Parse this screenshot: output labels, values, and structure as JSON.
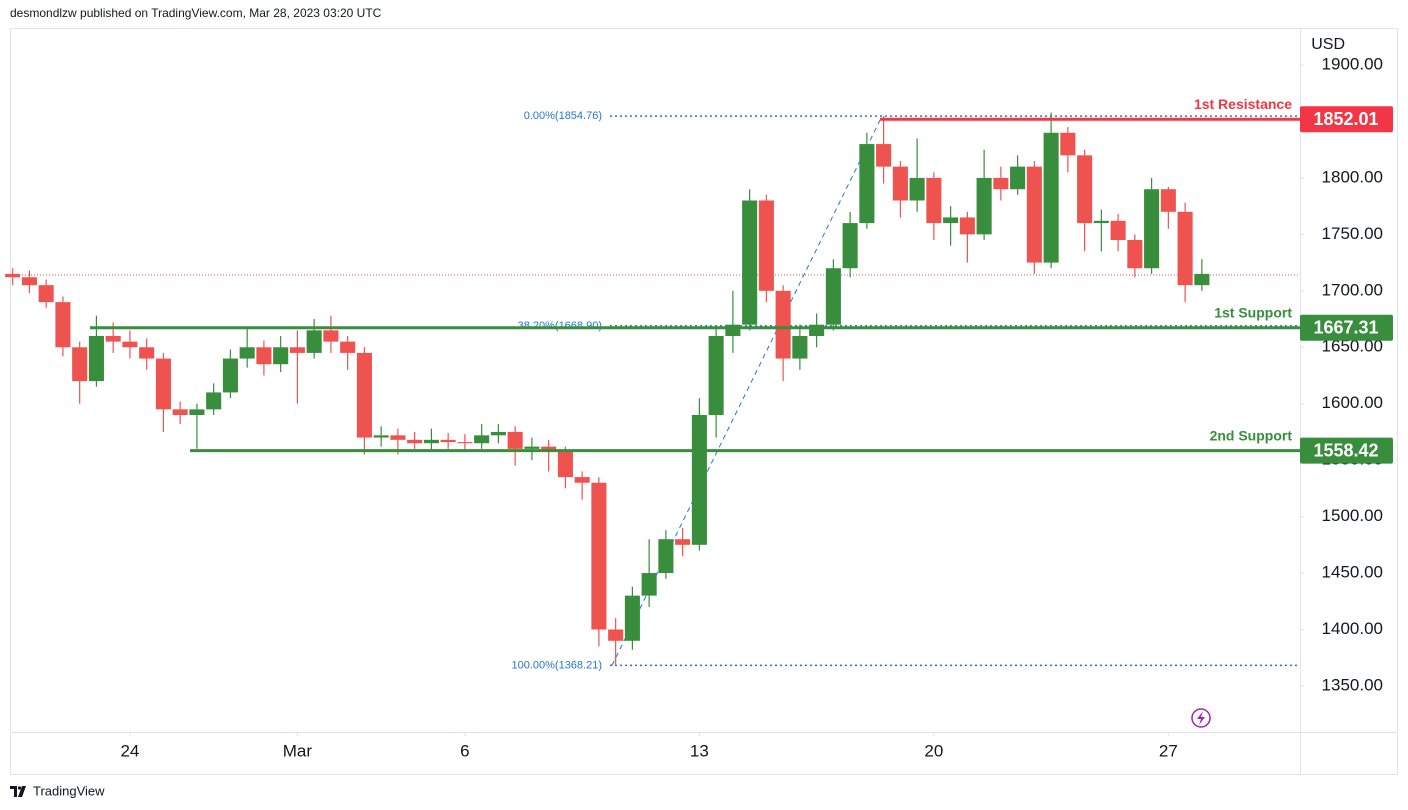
{
  "chart_data": {
    "type": "candlestick",
    "source": "desmondlzw published on TradingView.com, Mar 28, 2023 03:20 UTC",
    "brand": "TradingView",
    "y_label": "USD",
    "up_color": "#388e3c",
    "down_color": "#ef5350",
    "xlim": [
      20.42,
      58.93
    ],
    "xticks": [
      {
        "value": 24,
        "label": "24"
      },
      {
        "value": 29,
        "label": "Mar"
      },
      {
        "value": 34,
        "label": "6"
      },
      {
        "value": 41,
        "label": "13"
      },
      {
        "value": 48,
        "label": "20"
      },
      {
        "value": 55,
        "label": "27"
      }
    ],
    "ylim": [
      1309.2,
      1932.8
    ],
    "yticks": [
      {
        "value": 1350,
        "label": "1350.00"
      },
      {
        "value": 1400,
        "label": "1400.00"
      },
      {
        "value": 1450,
        "label": "1450.00"
      },
      {
        "value": 1500,
        "label": "1500.00"
      },
      {
        "value": 1550,
        "label": "1550.00"
      },
      {
        "value": 1600,
        "label": "1600.00"
      },
      {
        "value": 1650,
        "label": "1650.00"
      },
      {
        "value": 1700,
        "label": "1700.00"
      },
      {
        "value": 1750,
        "label": "1750.00"
      },
      {
        "value": 1800,
        "label": "1800.00"
      },
      {
        "value": 1850,
        "label": "1850.00"
      },
      {
        "value": 1900,
        "label": "1900.00"
      }
    ],
    "x": [
      20.5,
      21,
      21.5,
      22,
      22.5,
      23,
      23.5,
      24,
      24.5,
      25,
      25.5,
      26,
      26.5,
      27,
      27.5,
      28,
      28.5,
      29,
      29.5,
      30,
      30.5,
      31,
      31.5,
      32,
      32.5,
      33,
      33.5,
      34,
      34.5,
      35,
      35.5,
      36,
      36.5,
      37,
      37.5,
      38,
      38.5,
      39,
      39.5,
      40,
      40.5,
      41,
      41.5,
      42,
      42.5,
      43,
      43.5,
      44,
      44.5,
      45,
      45.5,
      46,
      46.5,
      47,
      47.5,
      48,
      48.5,
      49,
      49.5,
      50,
      50.5,
      51,
      51.5,
      52,
      52.5,
      53,
      53.5,
      54,
      54.5,
      55,
      55.5,
      56
    ],
    "open": [
      1715,
      1712,
      1705,
      1690,
      1650,
      1620,
      1660,
      1655,
      1650,
      1640,
      1595,
      1590,
      1595,
      1610,
      1640,
      1650,
      1635,
      1650,
      1645,
      1665,
      1655,
      1645,
      1570,
      1572,
      1568,
      1565,
      1568,
      1566,
      1565,
      1572,
      1575,
      1560,
      1562,
      1558,
      1535,
      1530,
      1400,
      1390,
      1430,
      1450,
      1480,
      1475,
      1590,
      1660,
      1670,
      1780,
      1700,
      1640,
      1660,
      1670,
      1720,
      1760,
      1830,
      1810,
      1780,
      1800,
      1760,
      1765,
      1750,
      1800,
      1790,
      1810,
      1725,
      1840,
      1820,
      1760,
      1762,
      1745,
      1720,
      1790,
      1770,
      1705
    ],
    "high": [
      1720,
      1718,
      1710,
      1695,
      1655,
      1678,
      1672,
      1665,
      1658,
      1645,
      1602,
      1600,
      1618,
      1648,
      1668,
      1656,
      1660,
      1665,
      1675,
      1678,
      1660,
      1650,
      1580,
      1578,
      1575,
      1578,
      1574,
      1573,
      1582,
      1582,
      1580,
      1570,
      1568,
      1562,
      1540,
      1535,
      1410,
      1438,
      1480,
      1488,
      1490,
      1605,
      1668,
      1700,
      1790,
      1785,
      1705,
      1670,
      1680,
      1728,
      1770,
      1840,
      1854.76,
      1815,
      1835,
      1805,
      1775,
      1770,
      1825,
      1810,
      1820,
      1815,
      1858,
      1845,
      1825,
      1772,
      1768,
      1750,
      1800,
      1792,
      1778,
      1728
    ],
    "low": [
      1705,
      1698,
      1685,
      1642,
      1600,
      1615,
      1645,
      1640,
      1630,
      1575,
      1582,
      1560,
      1590,
      1605,
      1632,
      1625,
      1628,
      1600,
      1640,
      1645,
      1630,
      1555,
      1562,
      1555,
      1560,
      1558,
      1560,
      1558,
      1560,
      1565,
      1545,
      1550,
      1540,
      1525,
      1515,
      1385,
      1368.21,
      1382,
      1420,
      1445,
      1465,
      1470,
      1570,
      1645,
      1665,
      1690,
      1620,
      1630,
      1650,
      1665,
      1712,
      1755,
      1795,
      1765,
      1770,
      1745,
      1740,
      1725,
      1745,
      1780,
      1785,
      1715,
      1720,
      1805,
      1735,
      1735,
      1735,
      1712,
      1715,
      1755,
      1690,
      1700
    ],
    "close": [
      1712,
      1705,
      1690,
      1650,
      1620,
      1660,
      1655,
      1650,
      1640,
      1595,
      1590,
      1595,
      1610,
      1640,
      1650,
      1635,
      1650,
      1645,
      1665,
      1655,
      1645,
      1570,
      1572,
      1568,
      1565,
      1568,
      1566,
      1565,
      1572,
      1575,
      1560,
      1562,
      1558,
      1535,
      1530,
      1400,
      1390,
      1430,
      1450,
      1480,
      1475,
      1590,
      1660,
      1670,
      1780,
      1700,
      1640,
      1660,
      1670,
      1720,
      1760,
      1830,
      1810,
      1780,
      1800,
      1760,
      1765,
      1750,
      1800,
      1790,
      1810,
      1725,
      1840,
      1820,
      1760,
      1762,
      1745,
      1720,
      1790,
      1770,
      1705,
      1715
    ],
    "last_price": 1714,
    "levels": [
      {
        "name": "1st Resistance",
        "value": 1852.01,
        "color": "#f23645"
      },
      {
        "name": "1st Support",
        "value": 1667.31,
        "color": "#388e3c"
      },
      {
        "name": "2nd Support",
        "value": 1558.42,
        "color": "#388e3c"
      }
    ],
    "fib_color": "#2177d9",
    "fib_levels": [
      {
        "label": "0.00%(1854.76)",
        "value": 1854.76
      },
      {
        "label": "38.20%(1668.90)",
        "value": 1668.9
      },
      {
        "label": "100.00%(1368.21)",
        "value": 1368.21
      }
    ]
  }
}
